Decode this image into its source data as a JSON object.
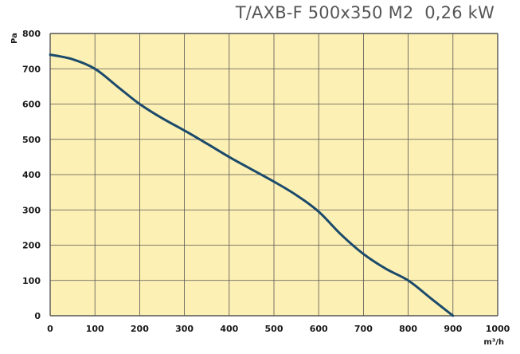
{
  "colors": {
    "plot_background": "#fdf0b4",
    "grid": "#555555",
    "curve": "#1b4a6b",
    "title": "#555555"
  },
  "chart_data": {
    "type": "line",
    "title": "T/AXB-F 500x350 M2  0,26 kW",
    "xlabel": "m³/h",
    "ylabel": "Pa",
    "xlim": [
      0,
      1000
    ],
    "ylim": [
      0,
      800
    ],
    "x_ticks": [
      0,
      100,
      200,
      300,
      400,
      500,
      600,
      700,
      800,
      900,
      1000
    ],
    "y_ticks": [
      0,
      100,
      200,
      300,
      400,
      500,
      600,
      700,
      800
    ],
    "grid": true,
    "series": [
      {
        "x": [
          0,
          50,
          100,
          150,
          200,
          250,
          300,
          350,
          400,
          450,
          500,
          550,
          600,
          650,
          700,
          750,
          800,
          850,
          900
        ],
        "y": [
          740,
          727,
          700,
          650,
          600,
          560,
          525,
          488,
          450,
          415,
          380,
          342,
          295,
          230,
          175,
          133,
          100,
          50,
          0
        ]
      }
    ]
  }
}
